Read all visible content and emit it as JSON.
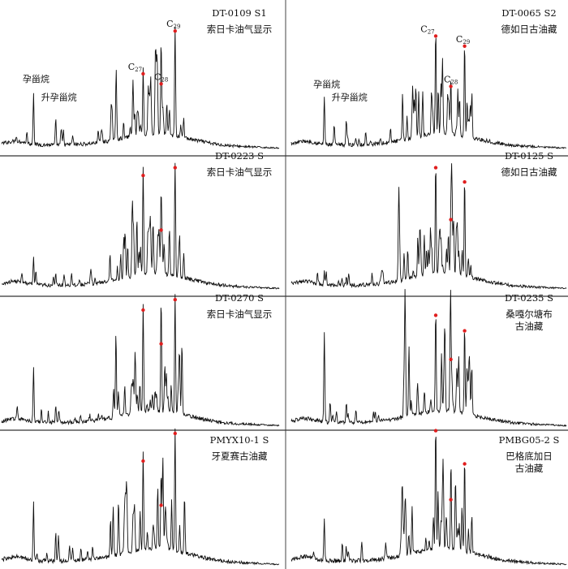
{
  "chart_data": {
    "type": "line",
    "annotations": {
      "pregnane": "孕甾烷",
      "homopregnane": "升孕甾烷",
      "c27": "C",
      "c27_sub": "27",
      "c28": "C",
      "c28_sub": "28",
      "c29": "C",
      "c29_sub": "29"
    },
    "panels": [
      {
        "sample": "DT-0109 S1",
        "location": [
          "索日卡油气显示"
        ],
        "peak_heights": {
          "c27": 0.54,
          "c28": 0.46,
          "c29": 0.88
        },
        "pregnane_height": 0.42,
        "homopregnane_height": 0.2,
        "annotated": true
      },
      {
        "sample": "DT-0065 S2",
        "location": [
          "德如日古油藏"
        ],
        "peak_heights": {
          "c27": 0.84,
          "c28": 0.44,
          "c29": 0.76
        },
        "pregnane_height": 0.38,
        "homopregnane_height": 0.2,
        "annotated": true
      },
      {
        "sample": "DT-0223 S",
        "location": [
          "索日卡油气显示"
        ],
        "peak_heights": {
          "c27": 0.82,
          "c28": 0.4,
          "c29": 0.88
        },
        "pregnane_height": 0.2,
        "homopregnane_height": 0.08,
        "annotated": false
      },
      {
        "sample": "DT-0125 S",
        "location": [
          "德如日古油藏"
        ],
        "peak_heights": {
          "c27": 0.88,
          "c28": 0.48,
          "c29": 0.77
        },
        "pregnane_height": 0.1,
        "homopregnane_height": 0.06,
        "annotated": false
      },
      {
        "sample": "DT-0270 S",
        "location": [
          "索日卡油气显示"
        ],
        "peak_heights": {
          "c27": 0.84,
          "c28": 0.58,
          "c29": 0.92
        },
        "pregnane_height": 0.42,
        "homopregnane_height": 0.12,
        "annotated": false
      },
      {
        "sample": "DT-0235 S",
        "location": [
          "桑嘎尔塘布",
          "古油藏"
        ],
        "peak_heights": {
          "c27": 0.8,
          "c28": 0.46,
          "c29": 0.68
        },
        "pregnane_height": 0.68,
        "homopregnane_height": 0.15,
        "annotated": false
      },
      {
        "sample": "PMYX10-1 S",
        "location": [
          "牙夏赛古油藏"
        ],
        "peak_heights": {
          "c27": 0.7,
          "c28": 0.38,
          "c29": 0.9
        },
        "pregnane_height": 0.42,
        "homopregnane_height": 0.2,
        "annotated": false
      },
      {
        "sample": "PMBG05-2 S",
        "location": [
          "巴格底加日",
          "古油藏"
        ],
        "peak_heights": {
          "c27": 0.92,
          "c28": 0.42,
          "c29": 0.68
        },
        "pregnane_height": 0.26,
        "homopregnane_height": 0.1,
        "annotated": false
      }
    ]
  }
}
